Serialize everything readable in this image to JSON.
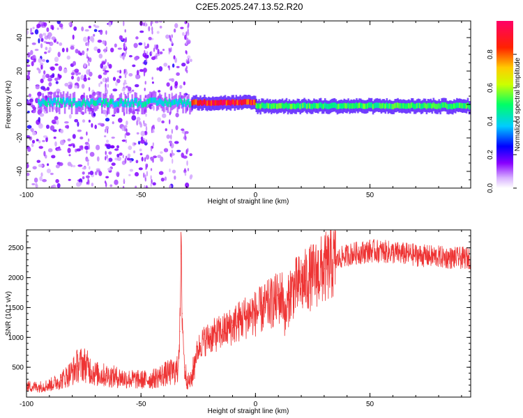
{
  "title": "C2E5.2025.247.13.52.R20",
  "colors": {
    "snr_line": "#ee3333",
    "axis": "#000000",
    "background": "#ffffff"
  },
  "chart_data": [
    {
      "type": "heatmap",
      "title": "C2E5.2025.247.13.52.R20",
      "xlabel": "Height of straight line (km)",
      "ylabel": "Frequency (Hz)",
      "xlim": [
        -100,
        94
      ],
      "ylim": [
        -50,
        50
      ],
      "x_ticks": [
        -100,
        -50,
        0,
        50
      ],
      "y_ticks": [
        -40,
        -20,
        0,
        20,
        40
      ],
      "colorbar": {
        "label": "Normalized spectral amplitude",
        "range": [
          0,
          1
        ],
        "ticks": [
          "0.0",
          "0.2",
          "0.4",
          "0.6",
          "0.8"
        ],
        "colormap": "rainbow"
      },
      "features": [
        {
          "segment": "broadband noise",
          "x_range": [
            -100,
            -28
          ],
          "freq_spread": [
            -50,
            50
          ],
          "amplitude": 0.1
        },
        {
          "segment": "signal ridge",
          "x_range": [
            -95,
            -28
          ],
          "frequency": 1,
          "amplitude": 0.45
        },
        {
          "segment": "signal ridge",
          "x_range": [
            -28,
            0
          ],
          "frequency": 1,
          "amplitude": 0.95
        },
        {
          "segment": "signal ridge",
          "x_range": [
            0,
            94
          ],
          "frequency": -1,
          "amplitude": 0.55
        }
      ]
    },
    {
      "type": "line",
      "xlabel": "Height of straight line (km)",
      "ylabel": "SNR (10 * v/v)",
      "xlim": [
        -100,
        94
      ],
      "ylim": [
        0,
        2800
      ],
      "x_ticks": [
        -100,
        -50,
        0,
        50
      ],
      "y_ticks": [
        500,
        1000,
        1500,
        2000,
        2500
      ],
      "series": [
        {
          "x": [
            -100,
            -95,
            -90,
            -85,
            -80,
            -78,
            -75,
            -72,
            -70,
            -65,
            -60,
            -55,
            -50,
            -45,
            -40,
            -36,
            -34,
            -33,
            -32.5,
            -32,
            -31,
            -30,
            -29,
            -28,
            -26,
            -24,
            -22,
            -20,
            -17,
            -14,
            -12,
            -10,
            -8,
            -6,
            -4,
            -2,
            0,
            2,
            4,
            6,
            8,
            10,
            12,
            13,
            15,
            18,
            22,
            26,
            30,
            34,
            38,
            42,
            46,
            50,
            55,
            60,
            65,
            70,
            75,
            80,
            85,
            90,
            94
          ],
          "y": [
            180,
            170,
            200,
            280,
            420,
            520,
            560,
            460,
            390,
            360,
            330,
            300,
            290,
            300,
            380,
            420,
            450,
            1100,
            2400,
            1400,
            500,
            300,
            250,
            280,
            700,
            900,
            950,
            1000,
            1050,
            1100,
            1150,
            1200,
            1250,
            1300,
            1350,
            1400,
            1400,
            1450,
            1500,
            1550,
            1600,
            1650,
            1700,
            1300,
            1750,
            1850,
            1950,
            2050,
            2150,
            2250,
            2350,
            2400,
            2420,
            2450,
            2440,
            2420,
            2400,
            2380,
            2360,
            2350,
            2330,
            2330,
            2330
          ]
        }
      ]
    }
  ]
}
